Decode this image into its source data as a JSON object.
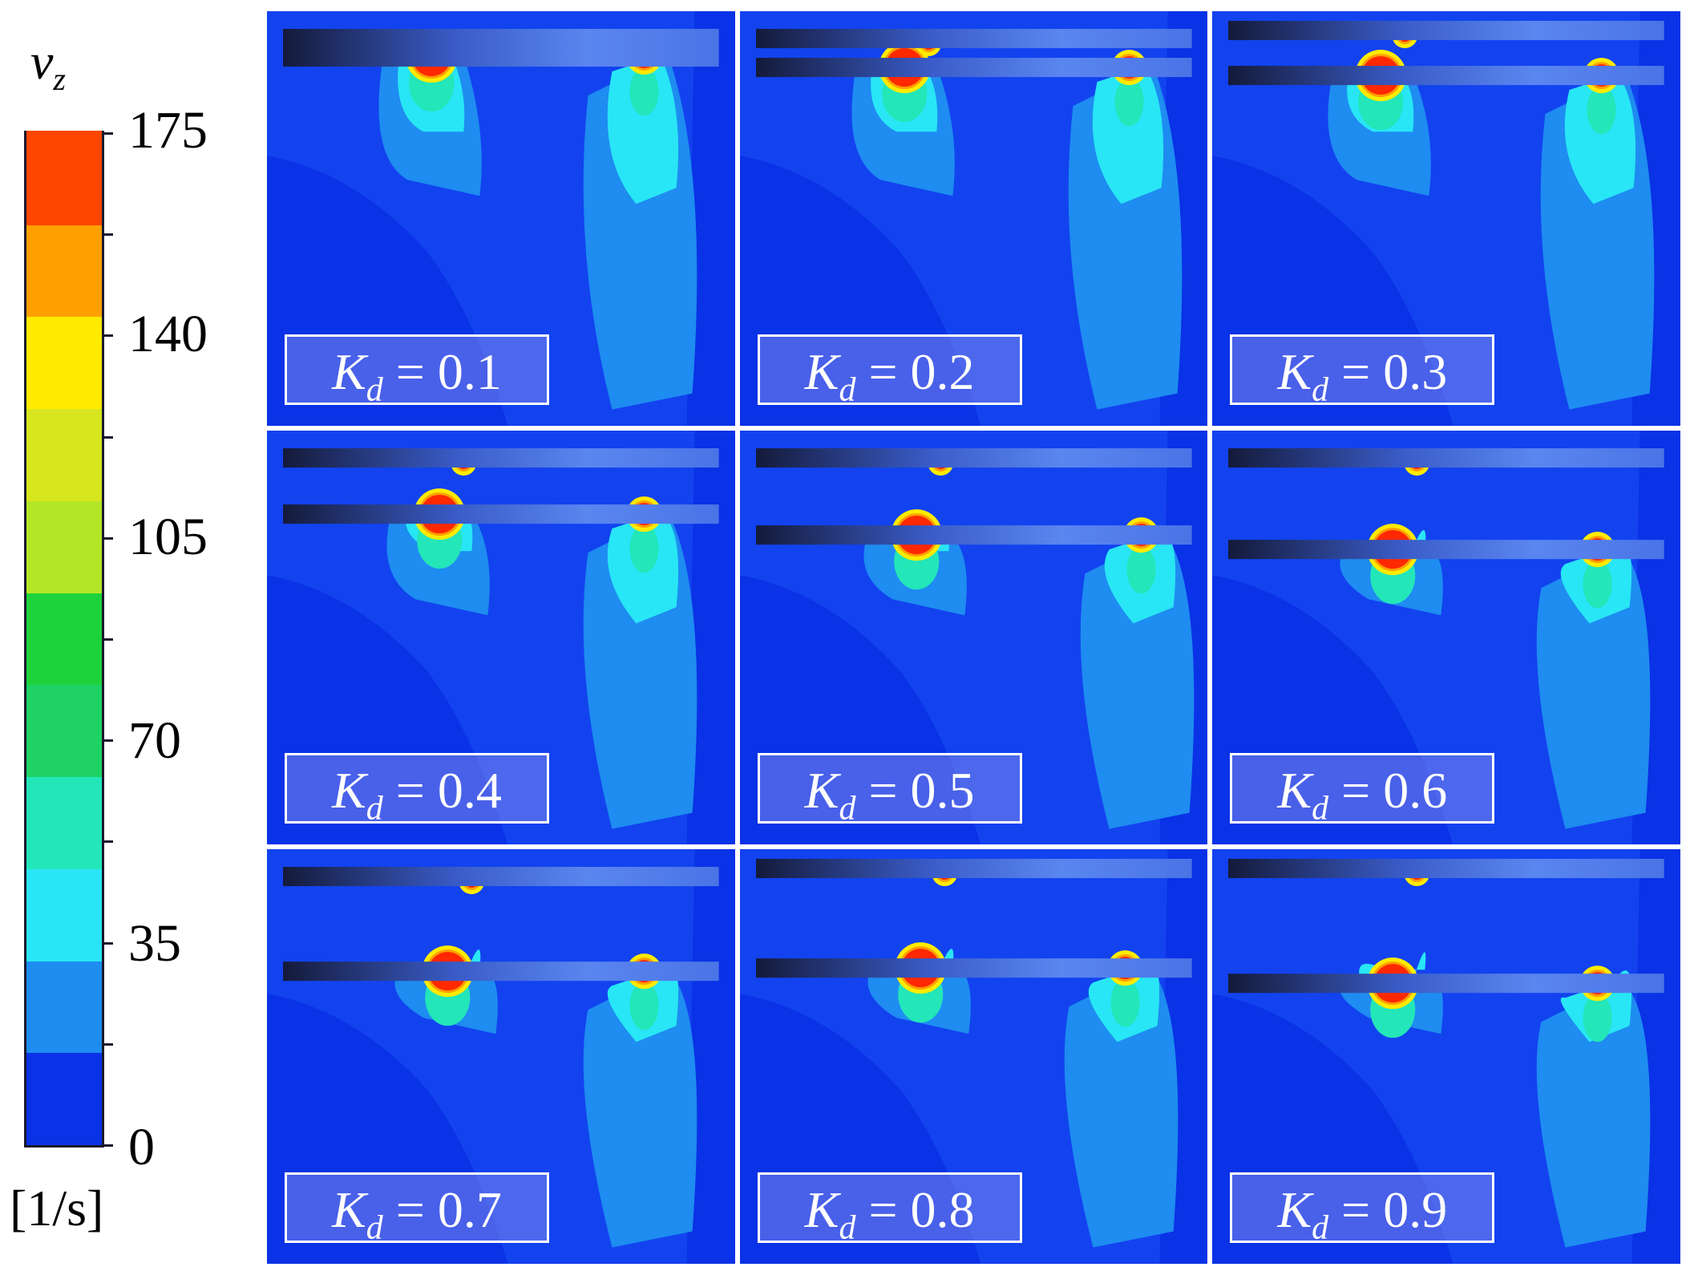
{
  "colorbar": {
    "variable": "v",
    "subscript": "z",
    "unit": "[1/s]",
    "tick_labels": [
      "175",
      "140",
      "105",
      "70",
      "35",
      "0"
    ],
    "min": 0,
    "max": 175,
    "bands": [
      "#0a32e6",
      "#1e8cf0",
      "#28e6f5",
      "#23e6b9",
      "#1ed264",
      "#1ed23c",
      "#b4e628",
      "#d7e61e",
      "#ffeb00",
      "#ffa000",
      "#ff4600"
    ]
  },
  "panels": [
    {
      "symbol": "K",
      "subscript": "d",
      "eq": " = ",
      "value": "0.1"
    },
    {
      "symbol": "K",
      "subscript": "d",
      "eq": " = ",
      "value": "0.2"
    },
    {
      "symbol": "K",
      "subscript": "d",
      "eq": " = ",
      "value": "0.3"
    },
    {
      "symbol": "K",
      "subscript": "d",
      "eq": " = ",
      "value": "0.4"
    },
    {
      "symbol": "K",
      "subscript": "d",
      "eq": " = ",
      "value": "0.5"
    },
    {
      "symbol": "K",
      "subscript": "d",
      "eq": " = ",
      "value": "0.6"
    },
    {
      "symbol": "K",
      "subscript": "d",
      "eq": " = ",
      "value": "0.7"
    },
    {
      "symbol": "K",
      "subscript": "d",
      "eq": " = ",
      "value": "0.8"
    },
    {
      "symbol": "K",
      "subscript": "d",
      "eq": " = ",
      "value": "0.9"
    }
  ]
}
